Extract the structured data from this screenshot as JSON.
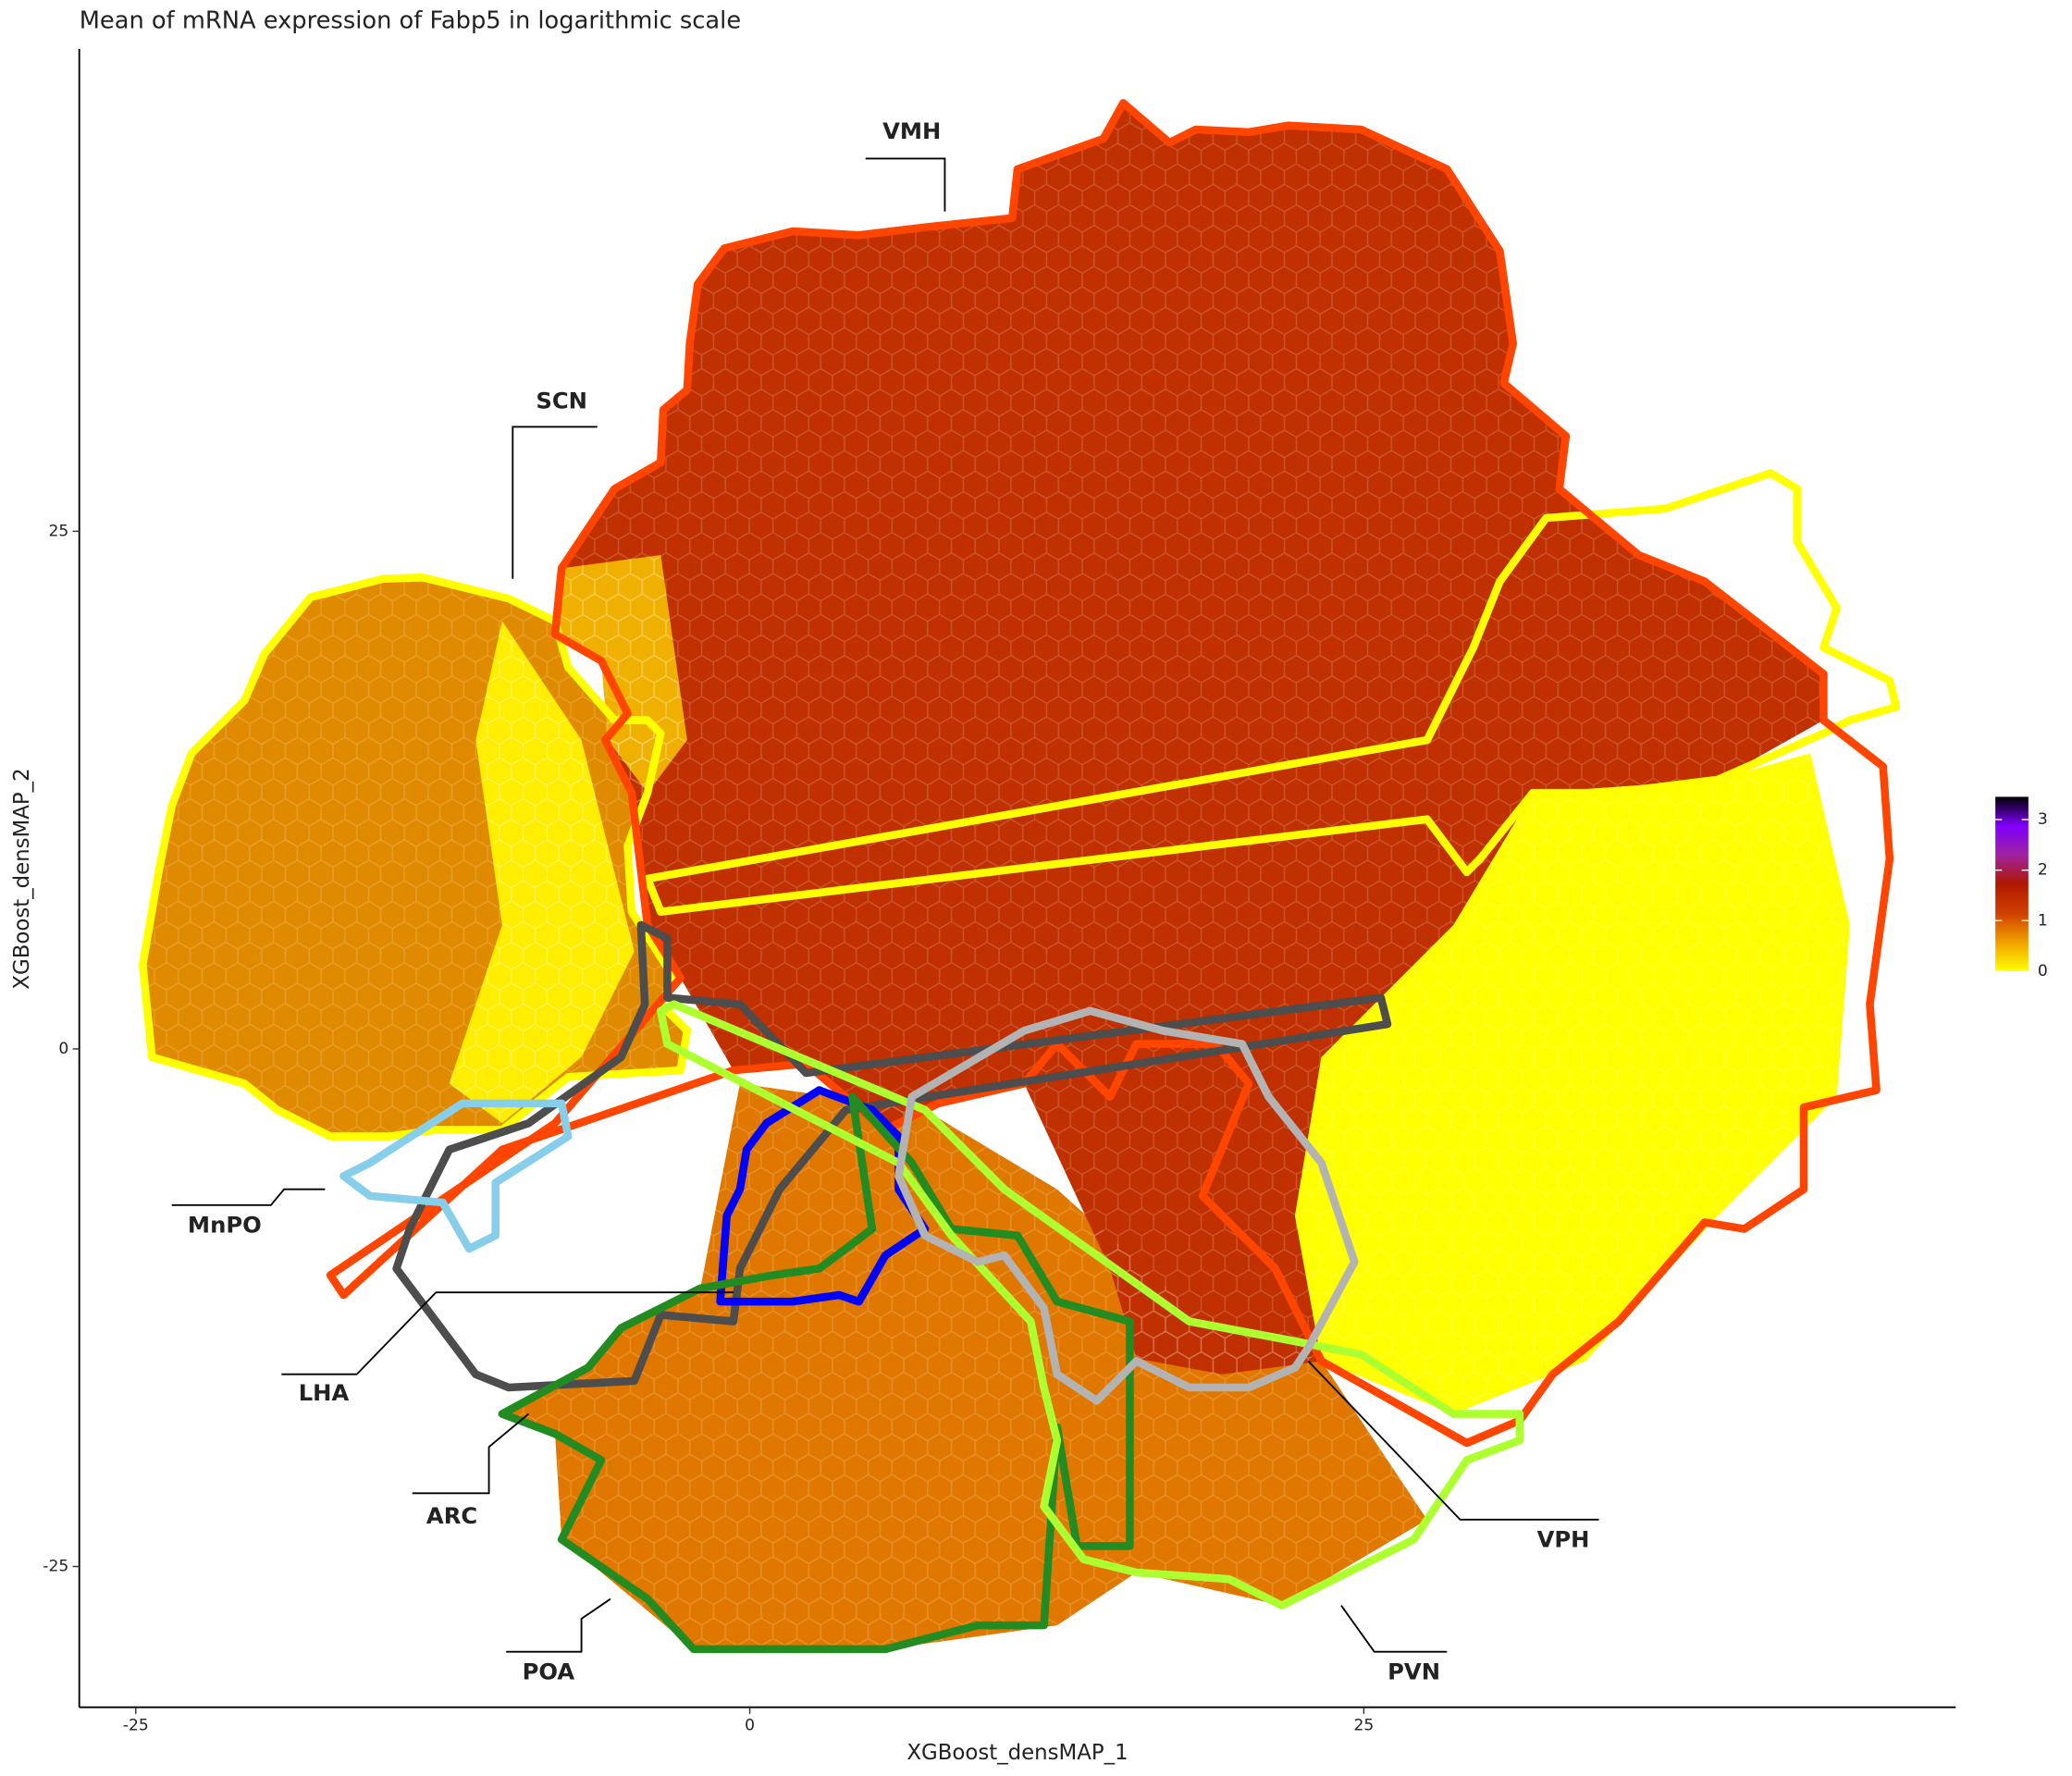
{
  "chart_data": {
    "type": "hexbin",
    "title": "Mean of mRNA expression of Fabp5 in logarithmic scale",
    "x_label": "XGBoost_densMAP_1",
    "y_label": "XGBoost_densMAP_2",
    "xlim": [
      -27.3,
      49.1
    ],
    "ylim": [
      -31.8,
      48.3
    ],
    "xticks": [
      -25,
      0,
      25
    ],
    "yticks": [
      -25,
      0,
      25
    ],
    "colorbar": {
      "lim": [
        0,
        3.45
      ],
      "ticks": [
        0,
        1,
        2,
        3
      ],
      "colors": [
        "#ffff00",
        "#f0a000",
        "#d04000",
        "#b01800",
        "#a020a0",
        "#8000ff",
        "#000000"
      ]
    },
    "region_labels": [
      "VMH",
      "SCN",
      "MnPO",
      "LHA",
      "ARC",
      "POA",
      "PVN",
      "VPH"
    ]
  }
}
